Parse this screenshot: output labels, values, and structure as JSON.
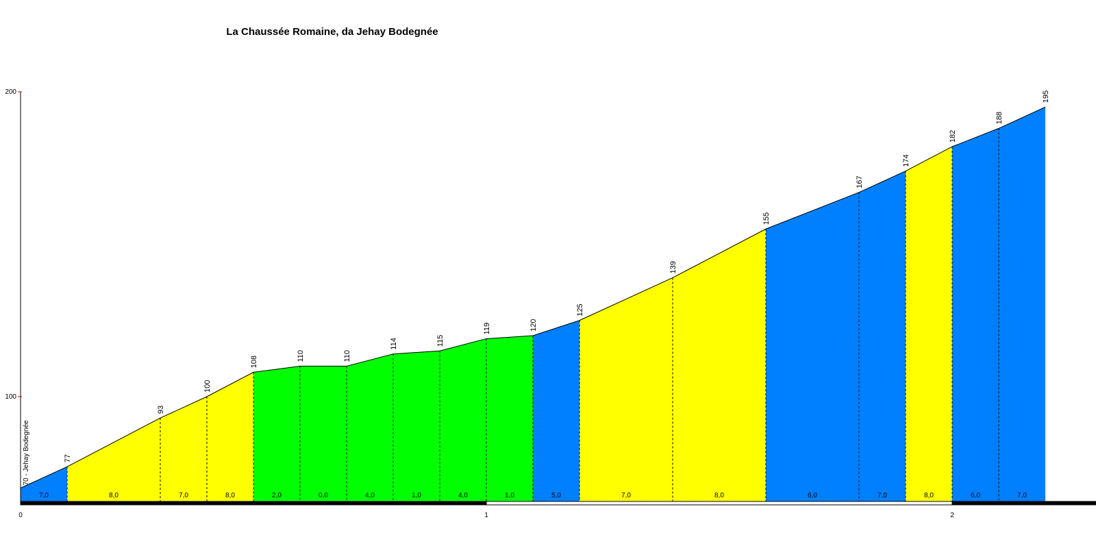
{
  "chart_data": {
    "type": "area",
    "title": "La Chaussée Romaine, da Jehay Bodegnée",
    "start_label": "70 - Jehay Bodegnée",
    "xlabel": "",
    "ylabel": "",
    "xlim": [
      0,
      2.35
    ],
    "ylim": [
      65,
      200
    ],
    "y_ticks": [
      100,
      200
    ],
    "x_ticks": [
      0,
      1,
      2
    ],
    "grid": false,
    "legend": "none",
    "points": [
      {
        "x": 0.0,
        "y": 70
      },
      {
        "x": 0.1,
        "y": 77
      },
      {
        "x": 0.3,
        "y": 93
      },
      {
        "x": 0.4,
        "y": 100
      },
      {
        "x": 0.5,
        "y": 108
      },
      {
        "x": 0.6,
        "y": 110
      },
      {
        "x": 0.7,
        "y": 110
      },
      {
        "x": 0.8,
        "y": 114
      },
      {
        "x": 0.9,
        "y": 115
      },
      {
        "x": 1.0,
        "y": 119
      },
      {
        "x": 1.1,
        "y": 120
      },
      {
        "x": 1.2,
        "y": 125
      },
      {
        "x": 1.4,
        "y": 139
      },
      {
        "x": 1.6,
        "y": 155
      },
      {
        "x": 1.8,
        "y": 167
      },
      {
        "x": 1.9,
        "y": 174
      },
      {
        "x": 2.0,
        "y": 182
      },
      {
        "x": 2.1,
        "y": 188
      },
      {
        "x": 2.2,
        "y": 195
      }
    ],
    "segments": [
      {
        "gradient": "7,0",
        "color": "#0080ff"
      },
      {
        "gradient": "8,0",
        "color": "#ffff00"
      },
      {
        "gradient": "7,0",
        "color": "#ffff00"
      },
      {
        "gradient": "8,0",
        "color": "#ffff00"
      },
      {
        "gradient": "2,0",
        "color": "#00ff00"
      },
      {
        "gradient": "0,0",
        "color": "#00ff00"
      },
      {
        "gradient": "4,0",
        "color": "#00ff00"
      },
      {
        "gradient": "1,0",
        "color": "#00ff00"
      },
      {
        "gradient": "4,0",
        "color": "#00ff00"
      },
      {
        "gradient": "1,0",
        "color": "#00ff00"
      },
      {
        "gradient": "5,0",
        "color": "#0080ff"
      },
      {
        "gradient": "7,0",
        "color": "#ffff00"
      },
      {
        "gradient": "8,0",
        "color": "#ffff00"
      },
      {
        "gradient": "6,0",
        "color": "#0080ff"
      },
      {
        "gradient": "7,0",
        "color": "#0080ff"
      },
      {
        "gradient": "8,0",
        "color": "#ffff00"
      },
      {
        "gradient": "6,0",
        "color": "#0080ff"
      },
      {
        "gradient": "7,0",
        "color": "#0080ff"
      }
    ]
  }
}
